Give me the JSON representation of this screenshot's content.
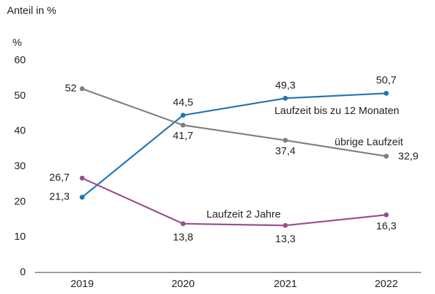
{
  "chart_data": {
    "type": "line",
    "title": "Anteil in %",
    "y_label": "%",
    "categories": [
      "2019",
      "2020",
      "2021",
      "2022"
    ],
    "series": [
      {
        "name": "Laufzeit bis zu 12 Monaten",
        "color": "#1f74b3",
        "values": [
          21.3,
          44.5,
          49.3,
          50.7
        ],
        "value_labels": [
          "21,3",
          "44,5",
          "49,3",
          "50,7"
        ]
      },
      {
        "name": "übrige Laufzeit",
        "color": "#7f7f7f",
        "values": [
          52,
          41.7,
          37.4,
          32.9
        ],
        "value_labels": [
          "52",
          "41,7",
          "37,4",
          "32,9"
        ]
      },
      {
        "name": "Laufzeit 2 Jahre",
        "color": "#9a4d8c",
        "values": [
          26.7,
          13.8,
          13.3,
          16.3
        ],
        "value_labels": [
          "26,7",
          "13,8",
          "13,3",
          "16,3"
        ]
      }
    ],
    "ylim": [
      0,
      60
    ],
    "yticks": [
      0,
      10,
      20,
      30,
      40,
      50,
      60
    ],
    "grid": false
  }
}
